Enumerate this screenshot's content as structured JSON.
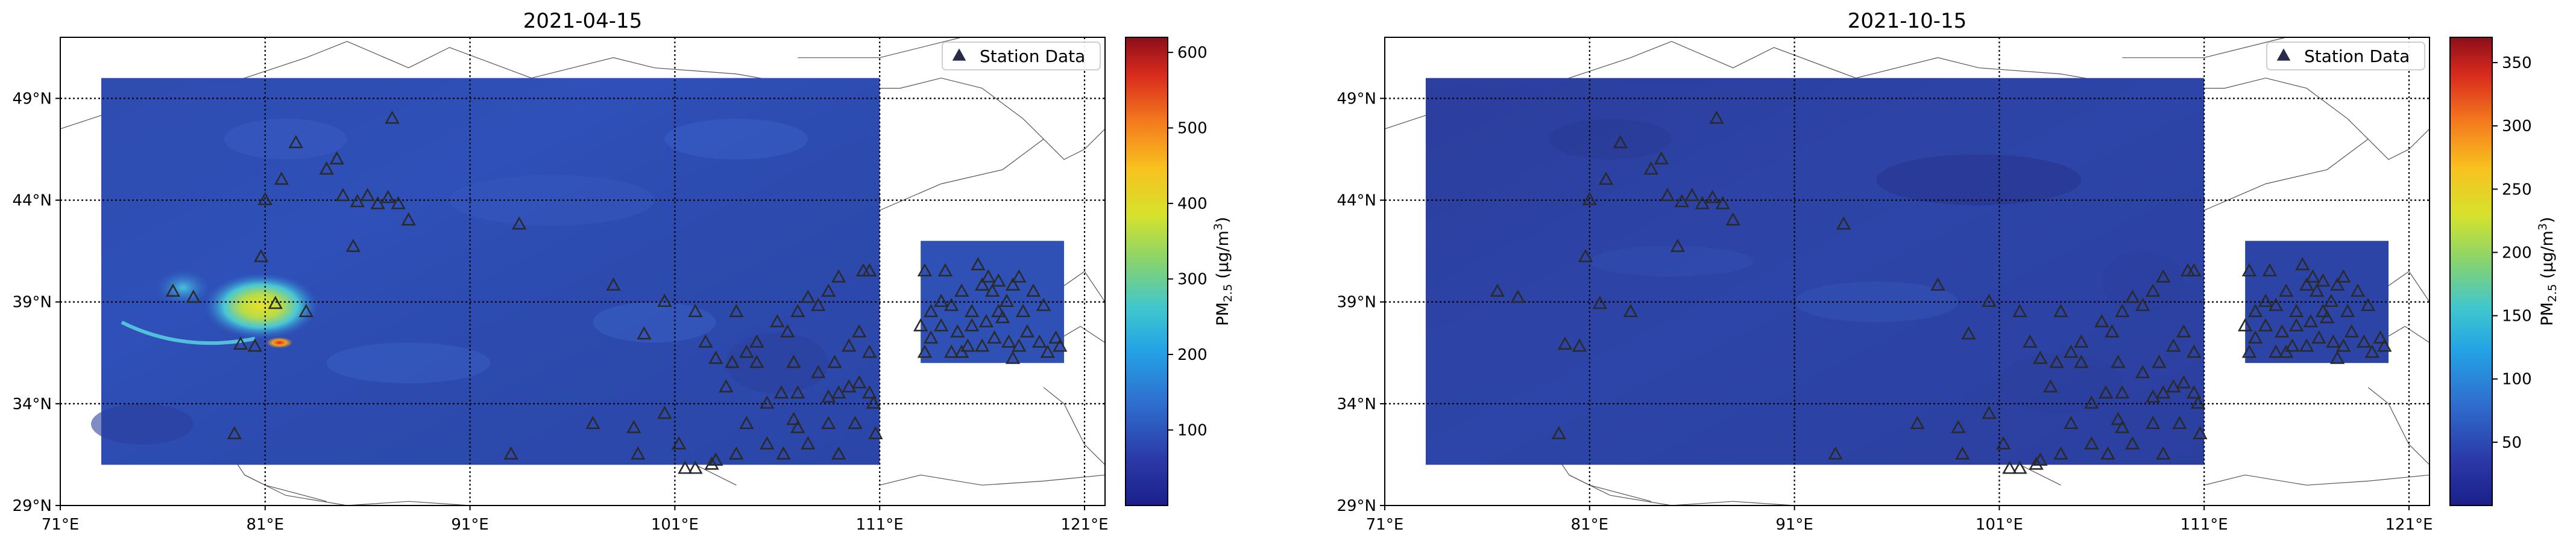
{
  "chart_data": [
    {
      "type": "heatmap",
      "title": "2021-04-15",
      "xlim": [
        71,
        122
      ],
      "ylim": [
        29,
        52
      ],
      "x_ticks": [
        71,
        81,
        91,
        101,
        111,
        121
      ],
      "x_tick_labels": [
        "71°E",
        "81°E",
        "91°E",
        "101°E",
        "111°E",
        "121°E"
      ],
      "y_ticks": [
        29,
        34,
        39,
        44,
        49
      ],
      "y_tick_labels": [
        "29°N",
        "34°N",
        "39°N",
        "44°N",
        "49°N"
      ],
      "grid": true,
      "field_extent": {
        "lon": [
          73,
          111
        ],
        "lat": [
          31,
          50
        ]
      },
      "inset_extent": {
        "lon": [
          113,
          120
        ],
        "lat": [
          36,
          42
        ]
      },
      "colorbar": {
        "label_main": "PM",
        "label_sub": "2.5",
        "label_units": "(μg/m",
        "label_sup": "3",
        "label_close": ")",
        "min": 0,
        "max": 620,
        "ticks": [
          100,
          200,
          300,
          400,
          500,
          600
        ],
        "colormap": "jet"
      },
      "hotspot_center": {
        "lon": 80.5,
        "lat": 38.5
      },
      "legend": {
        "label": "Station Data",
        "placement": "top-right"
      },
      "stations": [
        [
          76.5,
          39.5
        ],
        [
          79.8,
          36.9
        ],
        [
          81.5,
          38.9
        ],
        [
          80.8,
          41.2
        ],
        [
          81.0,
          44.0
        ],
        [
          81.8,
          45.0
        ],
        [
          82.5,
          46.8
        ],
        [
          84.0,
          45.5
        ],
        [
          84.5,
          46.0
        ],
        [
          84.8,
          44.2
        ],
        [
          85.5,
          43.9
        ],
        [
          86.0,
          44.2
        ],
        [
          86.5,
          43.8
        ],
        [
          87.0,
          44.1
        ],
        [
          87.5,
          43.8
        ],
        [
          88.0,
          43.0
        ],
        [
          87.2,
          48.0
        ],
        [
          85.3,
          41.7
        ],
        [
          83.0,
          38.5
        ],
        [
          80.5,
          36.8
        ],
        [
          93.4,
          42.8
        ],
        [
          98.0,
          39.8
        ],
        [
          99.5,
          37.4
        ],
        [
          99.0,
          32.8
        ],
        [
          99.2,
          31.5
        ],
        [
          104.0,
          38.5
        ],
        [
          103.8,
          36.0
        ],
        [
          104.5,
          36.5
        ],
        [
          105.0,
          36.0
        ],
        [
          103.5,
          34.8
        ],
        [
          104.5,
          33.0
        ],
        [
          105.5,
          34.0
        ],
        [
          106.2,
          34.5
        ],
        [
          106.5,
          37.5
        ],
        [
          107.0,
          38.5
        ],
        [
          107.5,
          39.2
        ],
        [
          108.0,
          38.8
        ],
        [
          108.5,
          39.5
        ],
        [
          109.0,
          40.2
        ],
        [
          110.2,
          40.5
        ],
        [
          110.5,
          40.5
        ],
        [
          110.0,
          37.5
        ],
        [
          109.5,
          36.8
        ],
        [
          108.8,
          36.0
        ],
        [
          108.0,
          35.5
        ],
        [
          107.0,
          34.5
        ],
        [
          108.5,
          34.3
        ],
        [
          109.0,
          34.5
        ],
        [
          109.5,
          34.8
        ],
        [
          110.0,
          35.0
        ],
        [
          110.5,
          34.5
        ],
        [
          110.7,
          34.0
        ],
        [
          109.8,
          33.0
        ],
        [
          108.5,
          33.0
        ],
        [
          107.0,
          32.8
        ],
        [
          106.3,
          31.5
        ],
        [
          105.5,
          32.0
        ],
        [
          104.0,
          31.5
        ],
        [
          102.0,
          30.8
        ],
        [
          102.8,
          31.0
        ],
        [
          103.0,
          31.2
        ],
        [
          101.5,
          30.8
        ],
        [
          101.2,
          32.0
        ],
        [
          100.5,
          33.5
        ],
        [
          106.8,
          33.2
        ],
        [
          107.5,
          32.0
        ],
        [
          109.0,
          31.5
        ],
        [
          110.8,
          32.5
        ],
        [
          110.5,
          36.5
        ],
        [
          105.0,
          37.0
        ],
        [
          106.0,
          38.0
        ],
        [
          106.8,
          36.0
        ],
        [
          100.5,
          39.0
        ],
        [
          102.0,
          38.5
        ],
        [
          102.5,
          37.0
        ],
        [
          103.0,
          36.2
        ],
        [
          97.0,
          33.0
        ],
        [
          77.5,
          39.2
        ],
        [
          79.5,
          32.5
        ],
        [
          93.0,
          31.5
        ],
        [
          113.2,
          40.5
        ],
        [
          114.0,
          39.0
        ],
        [
          114.5,
          38.8
        ],
        [
          115.0,
          39.5
        ],
        [
          115.5,
          38.5
        ],
        [
          116.0,
          39.8
        ],
        [
          116.3,
          40.2
        ],
        [
          116.5,
          39.5
        ],
        [
          116.8,
          40.0
        ],
        [
          117.2,
          39.0
        ],
        [
          117.5,
          39.8
        ],
        [
          117.0,
          38.2
        ],
        [
          116.2,
          38.0
        ],
        [
          115.5,
          37.8
        ],
        [
          114.8,
          37.5
        ],
        [
          114.0,
          37.8
        ],
        [
          113.5,
          37.2
        ],
        [
          113.2,
          36.5
        ],
        [
          113.0,
          37.8
        ],
        [
          114.5,
          36.5
        ],
        [
          115.3,
          36.8
        ],
        [
          116.0,
          36.8
        ],
        [
          116.6,
          37.2
        ],
        [
          117.3,
          37.0
        ],
        [
          117.8,
          36.8
        ],
        [
          118.2,
          37.5
        ],
        [
          118.8,
          37.0
        ],
        [
          119.2,
          36.5
        ],
        [
          118.0,
          38.5
        ],
        [
          118.5,
          39.5
        ],
        [
          119.0,
          38.8
        ],
        [
          119.6,
          37.2
        ],
        [
          114.2,
          40.5
        ],
        [
          115.8,
          40.8
        ],
        [
          117.8,
          40.2
        ],
        [
          116.8,
          38.5
        ],
        [
          113.5,
          38.5
        ],
        [
          115.0,
          36.5
        ],
        [
          117.5,
          36.2
        ],
        [
          119.8,
          36.8
        ]
      ]
    },
    {
      "type": "heatmap",
      "title": "2021-10-15",
      "xlim": [
        71,
        122
      ],
      "ylim": [
        29,
        52
      ],
      "x_ticks": [
        71,
        81,
        91,
        101,
        111,
        121
      ],
      "x_tick_labels": [
        "71°E",
        "81°E",
        "91°E",
        "101°E",
        "111°E",
        "121°E"
      ],
      "y_ticks": [
        29,
        34,
        39,
        44,
        49
      ],
      "y_tick_labels": [
        "29°N",
        "34°N",
        "39°N",
        "44°N",
        "49°N"
      ],
      "grid": true,
      "field_extent": {
        "lon": [
          73,
          111
        ],
        "lat": [
          31,
          50
        ]
      },
      "inset_extent": {
        "lon": [
          113,
          120
        ],
        "lat": [
          36,
          42
        ]
      },
      "colorbar": {
        "label_main": "PM",
        "label_sub": "2.5",
        "label_units": "(μg/m",
        "label_sup": "3",
        "label_close": ")",
        "min": 0,
        "max": 370,
        "ticks": [
          50,
          100,
          150,
          200,
          250,
          300,
          350
        ],
        "colormap": "jet"
      },
      "legend": {
        "label": "Station Data",
        "placement": "top-right"
      }
    }
  ]
}
